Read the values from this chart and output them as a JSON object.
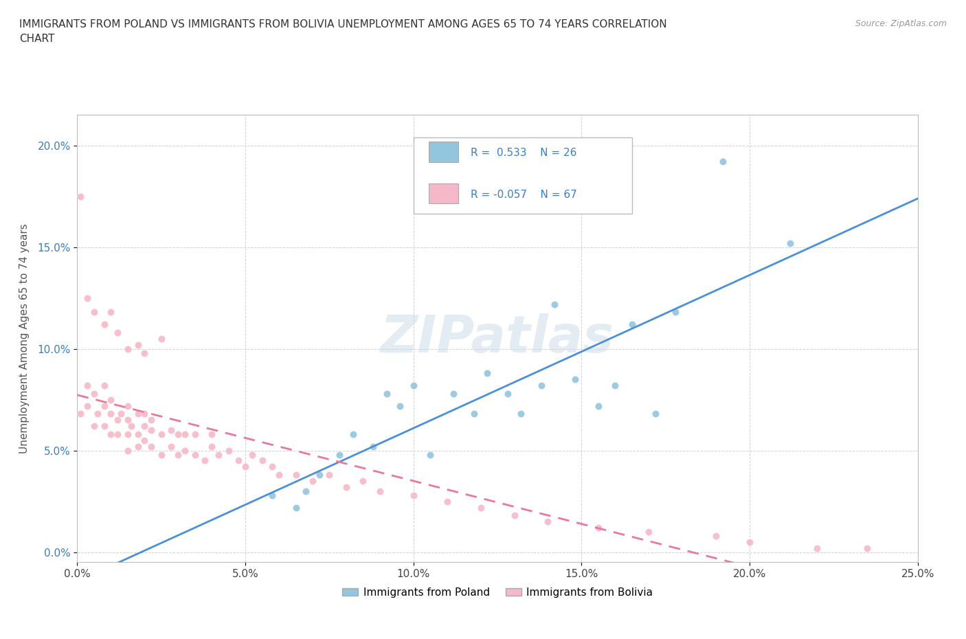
{
  "title": "IMMIGRANTS FROM POLAND VS IMMIGRANTS FROM BOLIVIA UNEMPLOYMENT AMONG AGES 65 TO 74 YEARS CORRELATION\nCHART",
  "source": "Source: ZipAtlas.com",
  "ylabel": "Unemployment Among Ages 65 to 74 years",
  "xlim": [
    0.0,
    0.25
  ],
  "ylim": [
    -0.005,
    0.215
  ],
  "xticks": [
    0.0,
    0.05,
    0.1,
    0.15,
    0.2,
    0.25
  ],
  "yticks": [
    0.0,
    0.05,
    0.1,
    0.15,
    0.2
  ],
  "poland_color": "#92c5de",
  "bolivia_color": "#f4b8c8",
  "poland_R": 0.533,
  "poland_N": 26,
  "bolivia_R": -0.057,
  "bolivia_N": 67,
  "poland_line_color": "#4a90d9",
  "bolivia_line_color": "#e8799a",
  "watermark": "ZIPatlas",
  "poland_x": [
    0.058,
    0.065,
    0.068,
    0.072,
    0.078,
    0.082,
    0.088,
    0.092,
    0.096,
    0.1,
    0.105,
    0.112,
    0.118,
    0.122,
    0.128,
    0.132,
    0.138,
    0.142,
    0.148,
    0.155,
    0.16,
    0.165,
    0.172,
    0.178,
    0.192,
    0.212
  ],
  "poland_y": [
    0.028,
    0.022,
    0.03,
    0.038,
    0.048,
    0.058,
    0.052,
    0.078,
    0.072,
    0.082,
    0.048,
    0.078,
    0.068,
    0.088,
    0.078,
    0.068,
    0.082,
    0.122,
    0.085,
    0.072,
    0.082,
    0.112,
    0.068,
    0.118,
    0.192,
    0.152
  ],
  "bolivia_x": [
    0.001,
    0.003,
    0.003,
    0.005,
    0.005,
    0.006,
    0.008,
    0.008,
    0.008,
    0.01,
    0.01,
    0.01,
    0.012,
    0.012,
    0.013,
    0.015,
    0.015,
    0.015,
    0.015,
    0.016,
    0.018,
    0.018,
    0.018,
    0.02,
    0.02,
    0.02,
    0.022,
    0.022,
    0.022,
    0.025,
    0.025,
    0.028,
    0.028,
    0.03,
    0.03,
    0.032,
    0.032,
    0.035,
    0.035,
    0.038,
    0.04,
    0.04,
    0.042,
    0.045,
    0.048,
    0.05,
    0.052,
    0.055,
    0.058,
    0.06,
    0.065,
    0.07,
    0.075,
    0.08,
    0.085,
    0.09,
    0.1,
    0.11,
    0.12,
    0.13,
    0.14,
    0.155,
    0.17,
    0.19,
    0.2,
    0.22,
    0.235
  ],
  "bolivia_y": [
    0.068,
    0.072,
    0.082,
    0.062,
    0.078,
    0.068,
    0.062,
    0.072,
    0.082,
    0.058,
    0.068,
    0.075,
    0.058,
    0.065,
    0.068,
    0.05,
    0.058,
    0.065,
    0.072,
    0.062,
    0.052,
    0.058,
    0.068,
    0.055,
    0.062,
    0.068,
    0.052,
    0.06,
    0.065,
    0.048,
    0.058,
    0.052,
    0.06,
    0.048,
    0.058,
    0.05,
    0.058,
    0.048,
    0.058,
    0.045,
    0.052,
    0.058,
    0.048,
    0.05,
    0.045,
    0.042,
    0.048,
    0.045,
    0.042,
    0.038,
    0.038,
    0.035,
    0.038,
    0.032,
    0.035,
    0.03,
    0.028,
    0.025,
    0.022,
    0.018,
    0.015,
    0.012,
    0.01,
    0.008,
    0.005,
    0.002,
    0.002
  ],
  "bolivia_extra_x": [
    0.001,
    0.003,
    0.005,
    0.008,
    0.01,
    0.012,
    0.015,
    0.018,
    0.02,
    0.025
  ],
  "bolivia_extra_y": [
    0.175,
    0.125,
    0.118,
    0.112,
    0.118,
    0.108,
    0.1,
    0.102,
    0.098,
    0.105
  ]
}
